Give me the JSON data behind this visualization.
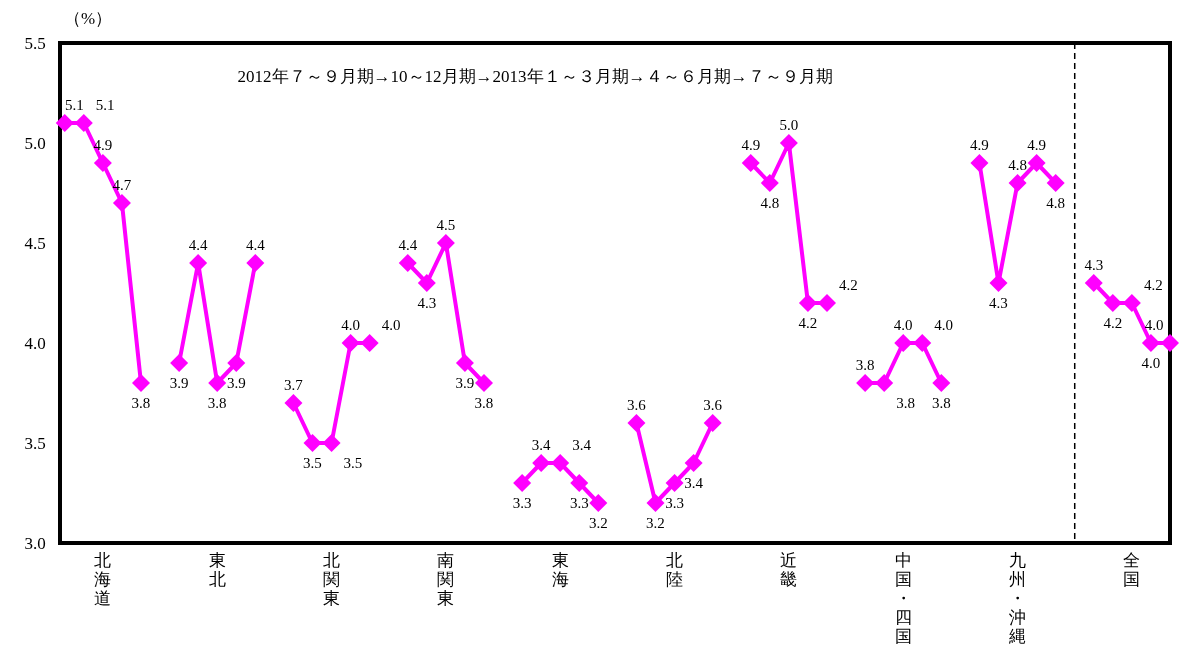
{
  "chart_data": {
    "type": "line",
    "title": "2012年７～９月期→10～12月期→2013年１～３月期→４～６月期→７～９月期",
    "ylabel": "（%）",
    "categories": [
      null,
      null,
      "北海道",
      null,
      null,
      null,
      null,
      null,
      "東北",
      null,
      null,
      null,
      null,
      null,
      "北関東",
      null,
      null,
      null,
      null,
      null,
      "南関東",
      null,
      null,
      null,
      null,
      null,
      "東海",
      null,
      null,
      null,
      null,
      null,
      "北陸",
      null,
      null,
      null,
      null,
      null,
      "近畿",
      null,
      null,
      null,
      null,
      null,
      "中国・四国",
      null,
      null,
      null,
      null,
      null,
      "九州・沖縄",
      null,
      null,
      null,
      null,
      null,
      "全国",
      null,
      null
    ],
    "values": [
      5.1,
      5.1,
      4.9,
      4.7,
      3.8,
      null,
      3.9,
      4.4,
      3.8,
      3.9,
      4.4,
      null,
      3.7,
      3.5,
      3.5,
      4.0,
      4.0,
      null,
      4.4,
      4.3,
      4.5,
      3.9,
      3.8,
      null,
      3.3,
      3.4,
      3.4,
      3.3,
      3.2,
      null,
      3.6,
      3.2,
      3.3,
      3.4,
      3.6,
      null,
      4.9,
      4.8,
      5.0,
      4.2,
      4.2,
      null,
      3.8,
      3.8,
      4.0,
      4.0,
      3.8,
      null,
      4.9,
      4.3,
      4.8,
      4.9,
      4.8,
      null,
      4.3,
      4.2,
      4.2,
      4.0,
      4.0
    ],
    "value_labels": [
      "5.1",
      "5.1",
      "4.9",
      "4.7",
      "3.8",
      null,
      "3.9",
      "4.4",
      "3.8",
      "3.9",
      "4.4",
      null,
      "3.7",
      "3.5",
      "3.5",
      "4.0",
      "4.0",
      null,
      "4.4",
      "4.3",
      "4.5",
      "3.9",
      "3.8",
      null,
      "3.3",
      "3.4",
      "3.4",
      "3.3",
      "3.2",
      null,
      "3.6",
      "3.2",
      "3.3",
      "3.4",
      "3.6",
      null,
      "4.9",
      "4.8",
      "5.0",
      "4.2",
      "4.2",
      null,
      "3.8",
      "3.8",
      "4.0",
      "4.0",
      "3.8",
      null,
      "4.9",
      "4.3",
      "4.8",
      "4.9",
      "4.8",
      null,
      "4.3",
      "4.2",
      "4.2",
      "4.0",
      "4.0"
    ],
    "color": "#ff00ff",
    "marker": "diamond",
    "line_style": "solid",
    "ylim": [
      3,
      5.5
    ],
    "yticks": [
      {
        "value": 3,
        "label": "3.0"
      },
      {
        "value": 3.5,
        "label": "3.5"
      },
      {
        "value": 4,
        "label": "4.0"
      },
      {
        "value": 4.5,
        "label": "4.5"
      },
      {
        "value": 5,
        "label": "5.0"
      },
      {
        "value": 5.5,
        "label": "5.5"
      }
    ]
  }
}
